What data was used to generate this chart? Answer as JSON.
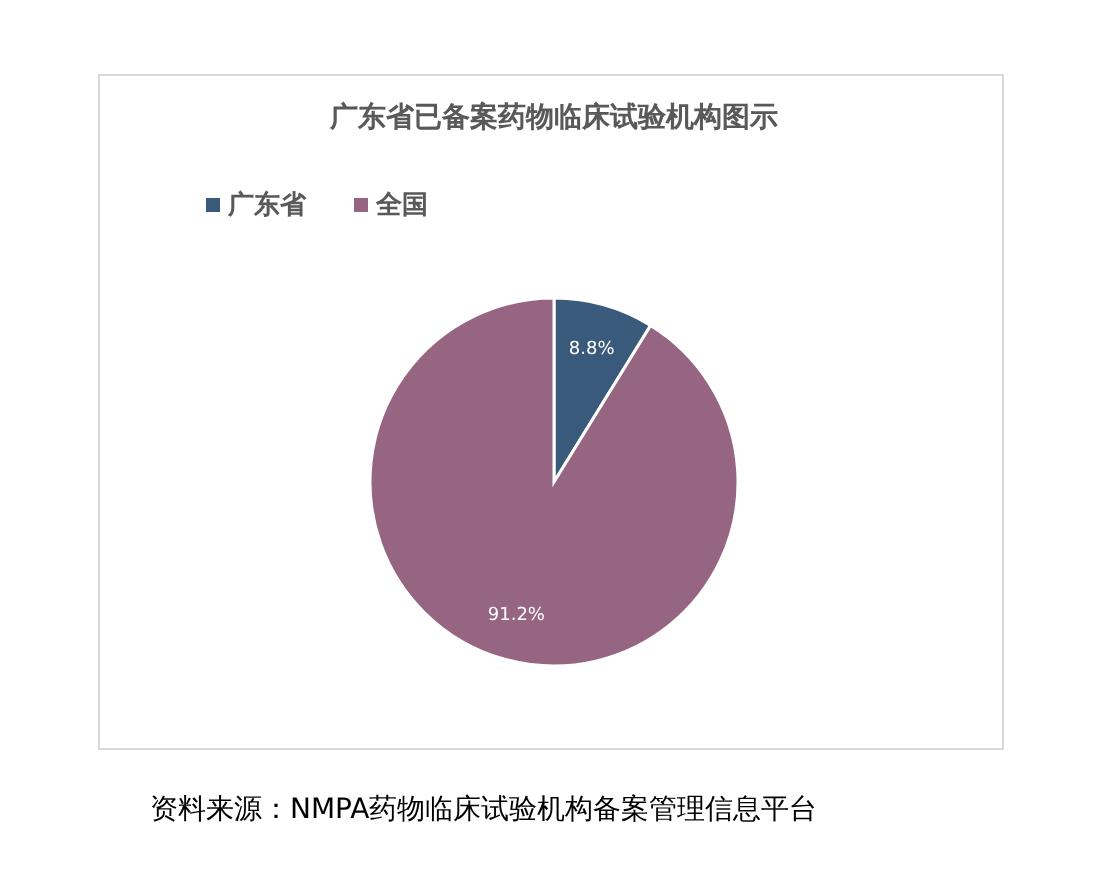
{
  "chart_data": {
    "type": "pie",
    "title": "广东省已备案药物临床试验机构图示",
    "categories": [
      "广东省",
      "全国"
    ],
    "values": [
      8.8,
      91.2
    ],
    "colors": [
      "#3a5a7c",
      "#956582"
    ],
    "value_labels": [
      "8.8%",
      "91.2%"
    ],
    "legend": "top left",
    "annotations": [
      "资料来源：NMPA药物临床试验机构备案管理信息平台"
    ]
  }
}
